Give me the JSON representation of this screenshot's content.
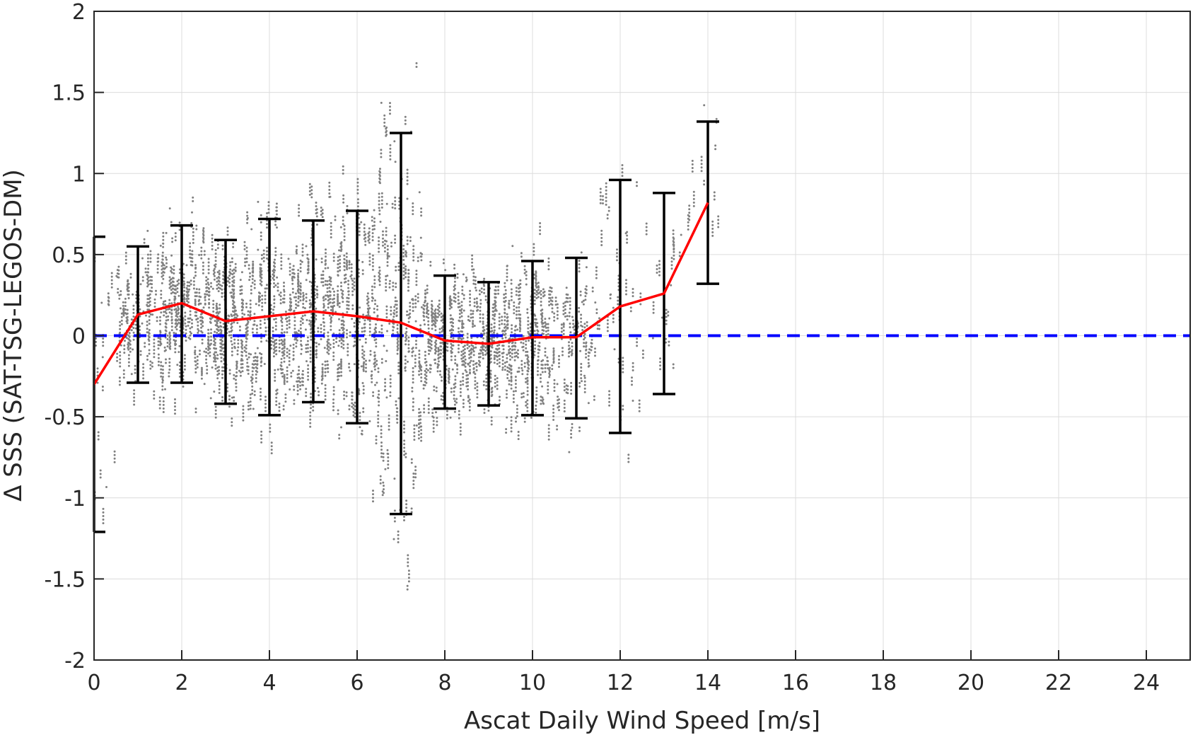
{
  "chart_data": {
    "type": "scatter",
    "title": "",
    "xlabel": "Ascat Daily Wind Speed [m/s]",
    "ylabel": "Δ SSS (SAT-TSG-LEGOS-DM)",
    "xlim": [
      0,
      25
    ],
    "ylim": [
      -2,
      2
    ],
    "xticks": [
      0,
      2,
      4,
      6,
      8,
      10,
      12,
      14,
      16,
      18,
      20,
      22,
      24
    ],
    "xtick_labels": [
      "0",
      "2",
      "4",
      "6",
      "8",
      "10",
      "12",
      "14",
      "16",
      "18",
      "20",
      "22",
      "24"
    ],
    "yticks": [
      -2,
      -1.5,
      -1,
      -0.5,
      0,
      0.5,
      1,
      1.5,
      2
    ],
    "ytick_labels": [
      "-2",
      "-1.5",
      "-1",
      "-0.5",
      "0",
      "0.5",
      "1",
      "1.5",
      "2"
    ],
    "grid": true,
    "scatter": {
      "name": "",
      "color": "#808080",
      "note_x_range": [
        0,
        14.3
      ],
      "note_y_range": [
        -2,
        2
      ]
    },
    "mean_line": {
      "color": "#ff0000",
      "x": [
        0,
        1,
        2,
        3,
        4,
        5,
        6,
        7,
        8,
        9,
        10,
        11,
        12,
        13,
        14
      ],
      "y": [
        -0.3,
        0.13,
        0.2,
        0.09,
        0.12,
        0.15,
        0.12,
        0.08,
        -0.03,
        -0.05,
        -0.01,
        -0.01,
        0.18,
        0.26,
        0.82
      ]
    },
    "error_bars": {
      "color": "#000000",
      "x": [
        0,
        1,
        2,
        3,
        4,
        5,
        6,
        7,
        8,
        9,
        10,
        11,
        12,
        13,
        14
      ],
      "lower": [
        -1.21,
        -0.29,
        -0.29,
        -0.42,
        -0.49,
        -0.41,
        -0.54,
        -1.1,
        -0.45,
        -0.43,
        -0.49,
        -0.51,
        -0.6,
        -0.36,
        0.32
      ],
      "upper": [
        0.61,
        0.55,
        0.68,
        0.59,
        0.72,
        0.71,
        0.77,
        1.25,
        0.37,
        0.33,
        0.46,
        0.48,
        0.96,
        0.88,
        1.32
      ]
    },
    "reference_line": {
      "y": 0,
      "color": "#0000ff",
      "style": "dashed"
    }
  }
}
